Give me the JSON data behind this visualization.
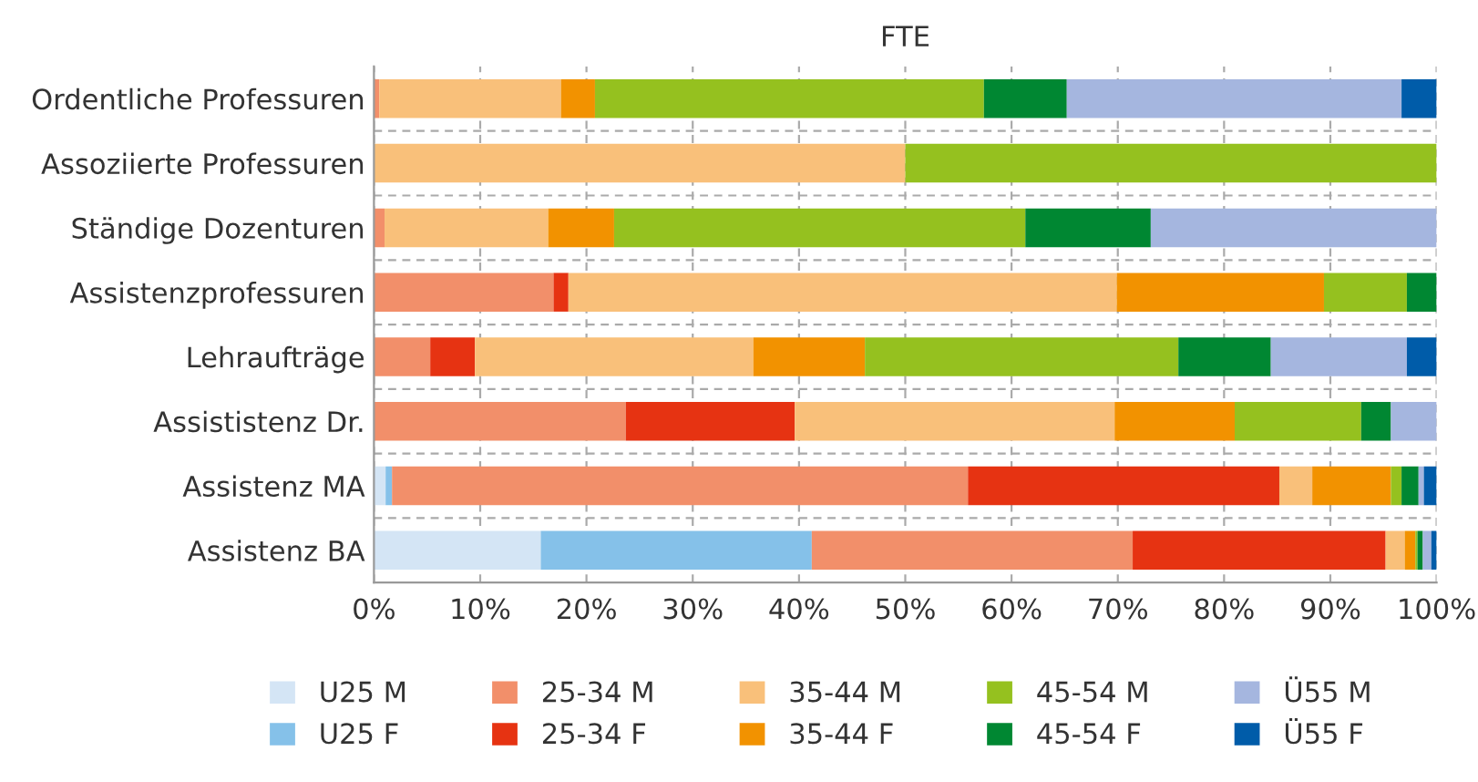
{
  "chart_data": {
    "type": "bar",
    "orientation": "horizontal",
    "stacked": true,
    "title": "FTE",
    "categories": [
      "Ordentliche Professuren",
      "Assoziierte Professuren",
      "Ständige Dozenturen",
      "Assistenzprofessuren",
      "Lehraufträge",
      "Assististenz Dr.",
      "Assistenz MA",
      "Assistenz BA"
    ],
    "series": [
      {
        "name": "U25 M",
        "color": "#d4e5f5",
        "values": [
          0,
          0,
          0,
          0,
          0,
          0,
          1.1,
          15.7
        ]
      },
      {
        "name": "U25 F",
        "color": "#85c1e9",
        "values": [
          0,
          0,
          0,
          0,
          0,
          0,
          0.6,
          25.5
        ]
      },
      {
        "name": "25-34 M",
        "color": "#f28f6a",
        "values": [
          0.5,
          0,
          1.0,
          16.9,
          5.3,
          23.7,
          54.2,
          30.2
        ]
      },
      {
        "name": "25-34 F",
        "color": "#e63312",
        "values": [
          0,
          0,
          0,
          1.4,
          4.2,
          15.9,
          29.3,
          23.8
        ]
      },
      {
        "name": "35-44 M",
        "color": "#f9c07a",
        "values": [
          17.1,
          50,
          15.4,
          51.6,
          26.2,
          30.1,
          3.1,
          1.8
        ]
      },
      {
        "name": "35-44 F",
        "color": "#f29200",
        "values": [
          3.2,
          0,
          6.2,
          19.5,
          10.5,
          11.3,
          7.4,
          1.0
        ]
      },
      {
        "name": "45-54 M",
        "color": "#95c11f",
        "values": [
          36.6,
          50,
          38.7,
          7.8,
          29.5,
          11.9,
          1.0,
          0.2
        ]
      },
      {
        "name": "45-54 F",
        "color": "#008732",
        "values": [
          7.8,
          0,
          11.8,
          2.8,
          8.7,
          2.8,
          1.6,
          0.5
        ]
      },
      {
        "name": "Ü55 M",
        "color": "#a5b6df",
        "values": [
          31.5,
          0,
          26.9,
          0,
          12.8,
          4.3,
          0.5,
          0.8
        ]
      },
      {
        "name": "Ü55 F",
        "color": "#005ca9",
        "values": [
          3.3,
          0,
          0,
          0,
          2.8,
          0,
          1.2,
          0.5
        ]
      }
    ],
    "xlim": [
      0,
      100
    ],
    "xticks": [
      {
        "value": 0,
        "label": "0%"
      },
      {
        "value": 10,
        "label": "10%"
      },
      {
        "value": 20,
        "label": "20%"
      },
      {
        "value": 30,
        "label": "30%"
      },
      {
        "value": 40,
        "label": "40%"
      },
      {
        "value": 50,
        "label": "50%"
      },
      {
        "value": 60,
        "label": "60%"
      },
      {
        "value": 70,
        "label": "70%"
      },
      {
        "value": 80,
        "label": "80%"
      },
      {
        "value": 90,
        "label": "90%"
      },
      {
        "value": 100,
        "label": "100%"
      }
    ],
    "grid": true,
    "legend": "bottom"
  }
}
